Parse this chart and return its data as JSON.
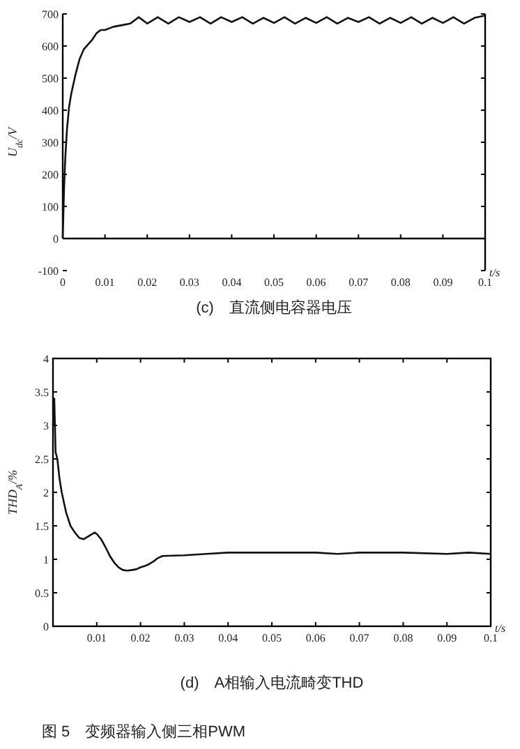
{
  "chart_data": [
    {
      "type": "line",
      "xlabel": "t/s",
      "ylabel": "U$_{dc}$/V",
      "xlim": [
        0,
        0.1
      ],
      "ylim": [
        -100,
        700
      ],
      "xticks": [
        0,
        0.01,
        0.02,
        0.03,
        0.04,
        0.05,
        0.06,
        0.07,
        0.08,
        0.09,
        0.1
      ],
      "yticks": [
        -100,
        0,
        100,
        200,
        300,
        400,
        500,
        600,
        700
      ],
      "series": [
        {
          "color": "#111111",
          "x": [
            0,
            0.0003,
            0.0006,
            0.001,
            0.0015,
            0.002,
            0.003,
            0.004,
            0.005,
            0.006,
            0.007,
            0.008,
            0.009,
            0.01,
            0.012,
            0.014,
            0.016,
            0.018,
            0.02,
            0.0225,
            0.025,
            0.0275,
            0.03,
            0.0325,
            0.035,
            0.0375,
            0.04,
            0.0425,
            0.045,
            0.0475,
            0.05,
            0.0525,
            0.055,
            0.0575,
            0.06,
            0.0625,
            0.065,
            0.0675,
            0.07,
            0.0725,
            0.075,
            0.0775,
            0.08,
            0.0825,
            0.085,
            0.0875,
            0.09,
            0.0925,
            0.095,
            0.0975,
            0.1
          ],
          "values": [
            0,
            150,
            250,
            340,
            410,
            450,
            510,
            560,
            590,
            605,
            620,
            640,
            650,
            650,
            660,
            665,
            670,
            690,
            670,
            690,
            670,
            690,
            675,
            690,
            670,
            690,
            675,
            690,
            670,
            688,
            672,
            690,
            670,
            688,
            672,
            690,
            670,
            688,
            675,
            690,
            670,
            688,
            672,
            690,
            670,
            688,
            672,
            690,
            670,
            688,
            695
          ]
        }
      ],
      "annotations": [
        "(c)　直流侧电容器电压"
      ]
    },
    {
      "type": "line",
      "xlabel": "t/s",
      "ylabel": "THD$_{A}$/%",
      "xlim": [
        0,
        0.1
      ],
      "ylim": [
        0,
        4
      ],
      "xticks": [
        0.01,
        0.02,
        0.03,
        0.04,
        0.05,
        0.06,
        0.07,
        0.08,
        0.09,
        0.1
      ],
      "yticks": [
        0,
        0.5,
        1,
        1.5,
        2,
        2.5,
        3,
        3.5,
        4
      ],
      "series": [
        {
          "color": "#111111",
          "x": [
            0,
            0.0003,
            0.0006,
            0.001,
            0.0015,
            0.002,
            0.003,
            0.004,
            0.005,
            0.006,
            0.007,
            0.008,
            0.009,
            0.0095,
            0.01,
            0.011,
            0.012,
            0.013,
            0.014,
            0.015,
            0.016,
            0.017,
            0.018,
            0.019,
            0.02,
            0.021,
            0.022,
            0.023,
            0.024,
            0.025,
            0.03,
            0.035,
            0.04,
            0.05,
            0.06,
            0.065,
            0.07,
            0.08,
            0.09,
            0.095,
            0.1
          ],
          "values": [
            3.0,
            3.4,
            2.6,
            2.5,
            2.2,
            2.0,
            1.7,
            1.5,
            1.4,
            1.32,
            1.3,
            1.34,
            1.38,
            1.4,
            1.38,
            1.3,
            1.18,
            1.05,
            0.95,
            0.88,
            0.84,
            0.83,
            0.84,
            0.85,
            0.88,
            0.9,
            0.93,
            0.97,
            1.02,
            1.05,
            1.06,
            1.08,
            1.1,
            1.1,
            1.1,
            1.08,
            1.1,
            1.1,
            1.08,
            1.1,
            1.08
          ]
        }
      ],
      "annotations": [
        "(d)　A相输入电流畸变THD",
        "图 5　变频器输入侧三相PWM"
      ]
    }
  ]
}
